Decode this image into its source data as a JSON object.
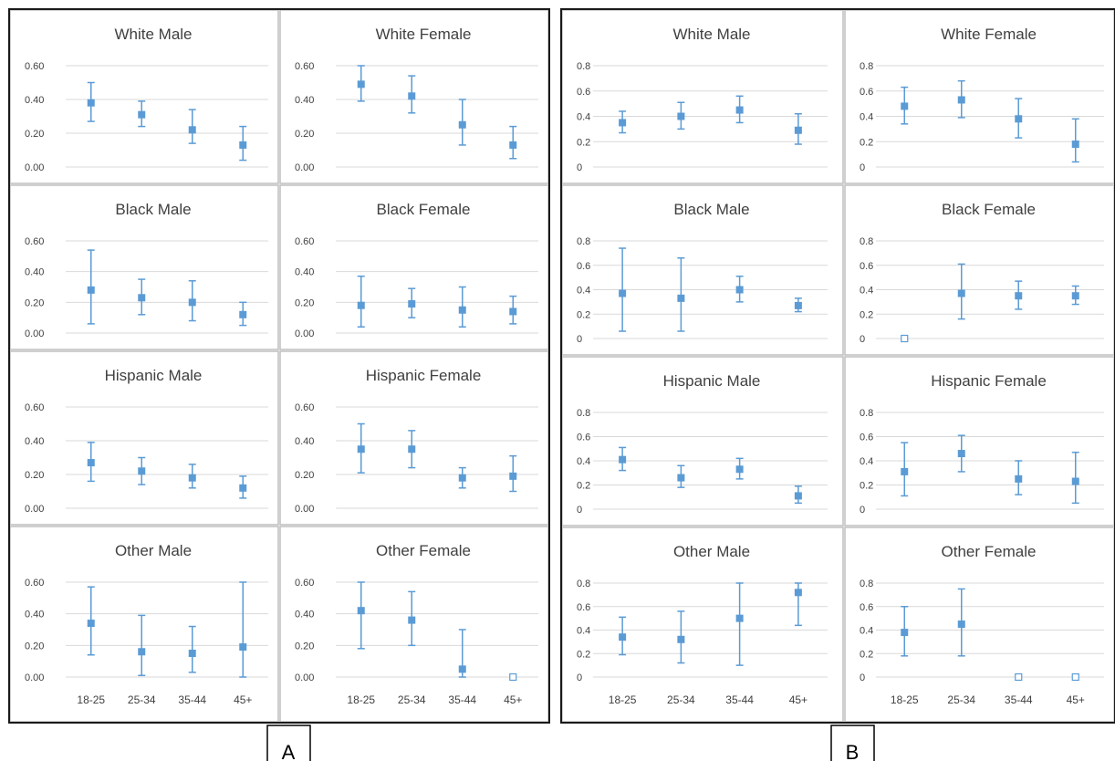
{
  "figure_labels": [
    "A",
    "B"
  ],
  "chart_data": [
    {
      "group": "A",
      "type": "scatter",
      "error_bars": true,
      "grid": true,
      "ylim": [
        0,
        0.6
      ],
      "y_ticks": [
        "0.60",
        "0.40",
        "0.20",
        "0.00"
      ],
      "categories": [
        "18-25",
        "25-34",
        "35-44",
        "45+"
      ],
      "panels": [
        {
          "title": "White Male",
          "values": [
            0.38,
            0.31,
            0.22,
            0.13
          ],
          "lower": [
            0.27,
            0.24,
            0.14,
            0.04
          ],
          "upper": [
            0.5,
            0.39,
            0.34,
            0.24
          ],
          "empty": [
            false,
            false,
            false,
            false
          ]
        },
        {
          "title": "White Female",
          "values": [
            0.49,
            0.42,
            0.25,
            0.13
          ],
          "lower": [
            0.39,
            0.32,
            0.13,
            0.05
          ],
          "upper": [
            0.6,
            0.54,
            0.4,
            0.24
          ],
          "empty": [
            false,
            false,
            false,
            false
          ]
        },
        {
          "title": "Black Male",
          "values": [
            0.28,
            0.23,
            0.2,
            0.12
          ],
          "lower": [
            0.06,
            0.12,
            0.08,
            0.05
          ],
          "upper": [
            0.54,
            0.35,
            0.34,
            0.2
          ],
          "empty": [
            false,
            false,
            false,
            false
          ]
        },
        {
          "title": "Black Female",
          "values": [
            0.18,
            0.19,
            0.15,
            0.14
          ],
          "lower": [
            0.04,
            0.1,
            0.04,
            0.06
          ],
          "upper": [
            0.37,
            0.29,
            0.3,
            0.24
          ],
          "empty": [
            false,
            false,
            false,
            false
          ]
        },
        {
          "title": "Hispanic Male",
          "values": [
            0.27,
            0.22,
            0.18,
            0.12
          ],
          "lower": [
            0.16,
            0.14,
            0.12,
            0.06
          ],
          "upper": [
            0.39,
            0.3,
            0.26,
            0.19
          ],
          "empty": [
            false,
            false,
            false,
            false
          ]
        },
        {
          "title": "Hispanic Female",
          "values": [
            0.35,
            0.35,
            0.18,
            0.19
          ],
          "lower": [
            0.21,
            0.24,
            0.12,
            0.1
          ],
          "upper": [
            0.5,
            0.46,
            0.24,
            0.31
          ],
          "empty": [
            false,
            false,
            false,
            false
          ]
        },
        {
          "title": "Other Male",
          "values": [
            0.34,
            0.16,
            0.15,
            0.19
          ],
          "lower": [
            0.14,
            0.01,
            0.03,
            0.0
          ],
          "upper": [
            0.57,
            0.39,
            0.32,
            0.6
          ],
          "empty": [
            false,
            false,
            false,
            false
          ]
        },
        {
          "title": "Other Female",
          "values": [
            0.42,
            0.36,
            0.05,
            0.0
          ],
          "lower": [
            0.18,
            0.2,
            0.0,
            0.0
          ],
          "upper": [
            0.6,
            0.54,
            0.3,
            0.0
          ],
          "empty": [
            false,
            false,
            false,
            true
          ]
        }
      ]
    },
    {
      "group": "B",
      "type": "scatter",
      "error_bars": true,
      "grid": true,
      "ylim": [
        0,
        0.8
      ],
      "y_ticks": [
        "0.8",
        "0.6",
        "0.4",
        "0.2",
        "0"
      ],
      "categories": [
        "18-25",
        "25-34",
        "35-44",
        "45+"
      ],
      "panels": [
        {
          "title": "White Male",
          "values": [
            0.35,
            0.4,
            0.45,
            0.29
          ],
          "lower": [
            0.27,
            0.3,
            0.35,
            0.18
          ],
          "upper": [
            0.44,
            0.51,
            0.56,
            0.42
          ],
          "empty": [
            false,
            false,
            false,
            false
          ]
        },
        {
          "title": "White Female",
          "values": [
            0.48,
            0.53,
            0.38,
            0.18
          ],
          "lower": [
            0.34,
            0.39,
            0.23,
            0.04
          ],
          "upper": [
            0.63,
            0.68,
            0.54,
            0.38
          ],
          "empty": [
            false,
            false,
            false,
            false
          ]
        },
        {
          "title": "Black Male",
          "values": [
            0.37,
            0.33,
            0.4,
            0.27
          ],
          "lower": [
            0.06,
            0.06,
            0.3,
            0.22
          ],
          "upper": [
            0.74,
            0.66,
            0.51,
            0.33
          ],
          "empty": [
            false,
            false,
            false,
            false
          ]
        },
        {
          "title": "Black Female",
          "values": [
            0.0,
            0.37,
            0.35,
            0.35
          ],
          "lower": [
            0.0,
            0.16,
            0.24,
            0.28
          ],
          "upper": [
            0.0,
            0.61,
            0.47,
            0.43
          ],
          "empty": [
            true,
            false,
            false,
            false
          ]
        },
        {
          "title": "Hispanic Male",
          "values": [
            0.41,
            0.26,
            0.33,
            0.11
          ],
          "lower": [
            0.32,
            0.18,
            0.25,
            0.05
          ],
          "upper": [
            0.51,
            0.36,
            0.42,
            0.19
          ],
          "empty": [
            false,
            false,
            false,
            false
          ]
        },
        {
          "title": "Hispanic Female",
          "values": [
            0.31,
            0.46,
            0.25,
            0.23
          ],
          "lower": [
            0.11,
            0.31,
            0.12,
            0.05
          ],
          "upper": [
            0.55,
            0.61,
            0.4,
            0.47
          ],
          "empty": [
            false,
            false,
            false,
            false
          ]
        },
        {
          "title": "Other Male",
          "values": [
            0.34,
            0.32,
            0.5,
            0.72
          ],
          "lower": [
            0.19,
            0.12,
            0.1,
            0.44
          ],
          "upper": [
            0.51,
            0.56,
            0.8,
            0.8
          ],
          "empty": [
            false,
            false,
            false,
            false
          ]
        },
        {
          "title": "Other Female",
          "values": [
            0.38,
            0.45,
            0.0,
            0.0
          ],
          "lower": [
            0.18,
            0.18,
            0.0,
            0.0
          ],
          "upper": [
            0.6,
            0.75,
            0.0,
            0.0
          ],
          "empty": [
            false,
            false,
            true,
            true
          ]
        }
      ]
    }
  ]
}
